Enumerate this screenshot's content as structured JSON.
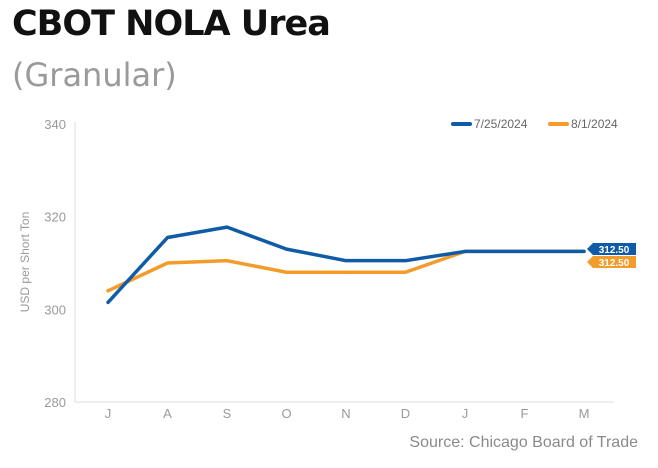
{
  "header": {
    "title": "CBOT NOLA Urea",
    "subtitle": "(Granular)"
  },
  "footer": {
    "source": "Source: Chicago Board of Trade"
  },
  "chart_data": {
    "type": "line",
    "title": "CBOT NOLA Urea",
    "subtitle": "(Granular)",
    "xlabel": "",
    "ylabel": "USD per Short Ton",
    "categories": [
      "J",
      "A",
      "S",
      "O",
      "N",
      "D",
      "J",
      "F",
      "M"
    ],
    "ylim": [
      280,
      340
    ],
    "yticks": [
      280,
      300,
      320,
      340
    ],
    "grid": false,
    "legend_position": "top-right",
    "series": [
      {
        "name": "7/25/2024",
        "color": "#0f5ba7",
        "values": [
          301.5,
          315.5,
          317.75,
          313,
          310.5,
          310.5,
          312.5,
          312.5,
          312.5
        ],
        "end_label": "312.50"
      },
      {
        "name": "8/1/2024",
        "color": "#f39c2b",
        "values": [
          304,
          310,
          310.5,
          308,
          308,
          308,
          312.5,
          312.5,
          312.5
        ],
        "end_label": "312.50"
      }
    ]
  }
}
